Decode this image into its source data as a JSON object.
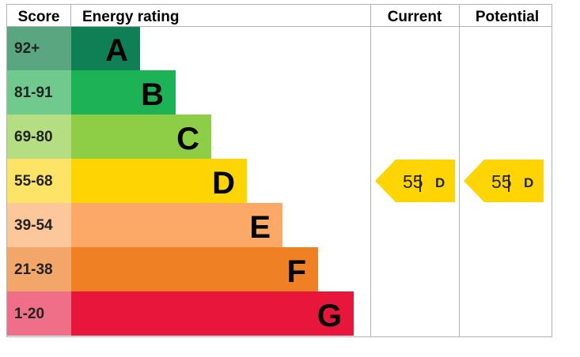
{
  "chart_data": {
    "type": "bar",
    "headers": {
      "score": "Score",
      "rating": "Energy rating",
      "current": "Current",
      "potential": "Potential"
    },
    "bands": [
      {
        "score_range": "92+",
        "letter": "A",
        "min": 92,
        "max": 100,
        "bar_color": "#0f7f55",
        "score_color": "#5aa680"
      },
      {
        "score_range": "81-91",
        "letter": "B",
        "min": 81,
        "max": 91,
        "bar_color": "#1eb257",
        "score_color": "#70c98d"
      },
      {
        "score_range": "69-80",
        "letter": "C",
        "min": 69,
        "max": 80,
        "bar_color": "#8dce46",
        "score_color": "#b5de83"
      },
      {
        "score_range": "55-68",
        "letter": "D",
        "min": 55,
        "max": 68,
        "bar_color": "#fed403",
        "score_color": "#fde467"
      },
      {
        "score_range": "39-54",
        "letter": "E",
        "min": 39,
        "max": 54,
        "bar_color": "#fca968",
        "score_color": "#fcc79b"
      },
      {
        "score_range": "21-38",
        "letter": "F",
        "min": 21,
        "max": 38,
        "bar_color": "#ef8023",
        "score_color": "#f2a66a"
      },
      {
        "score_range": "1-20",
        "letter": "G",
        "min": 1,
        "max": 20,
        "bar_color": "#e9163b",
        "score_color": "#ef6f89"
      }
    ],
    "current": {
      "value": 55,
      "separator": "|",
      "letter": "D",
      "color": "#fed403"
    },
    "potential": {
      "value": 55,
      "separator": "|",
      "letter": "D",
      "color": "#fed403"
    }
  }
}
